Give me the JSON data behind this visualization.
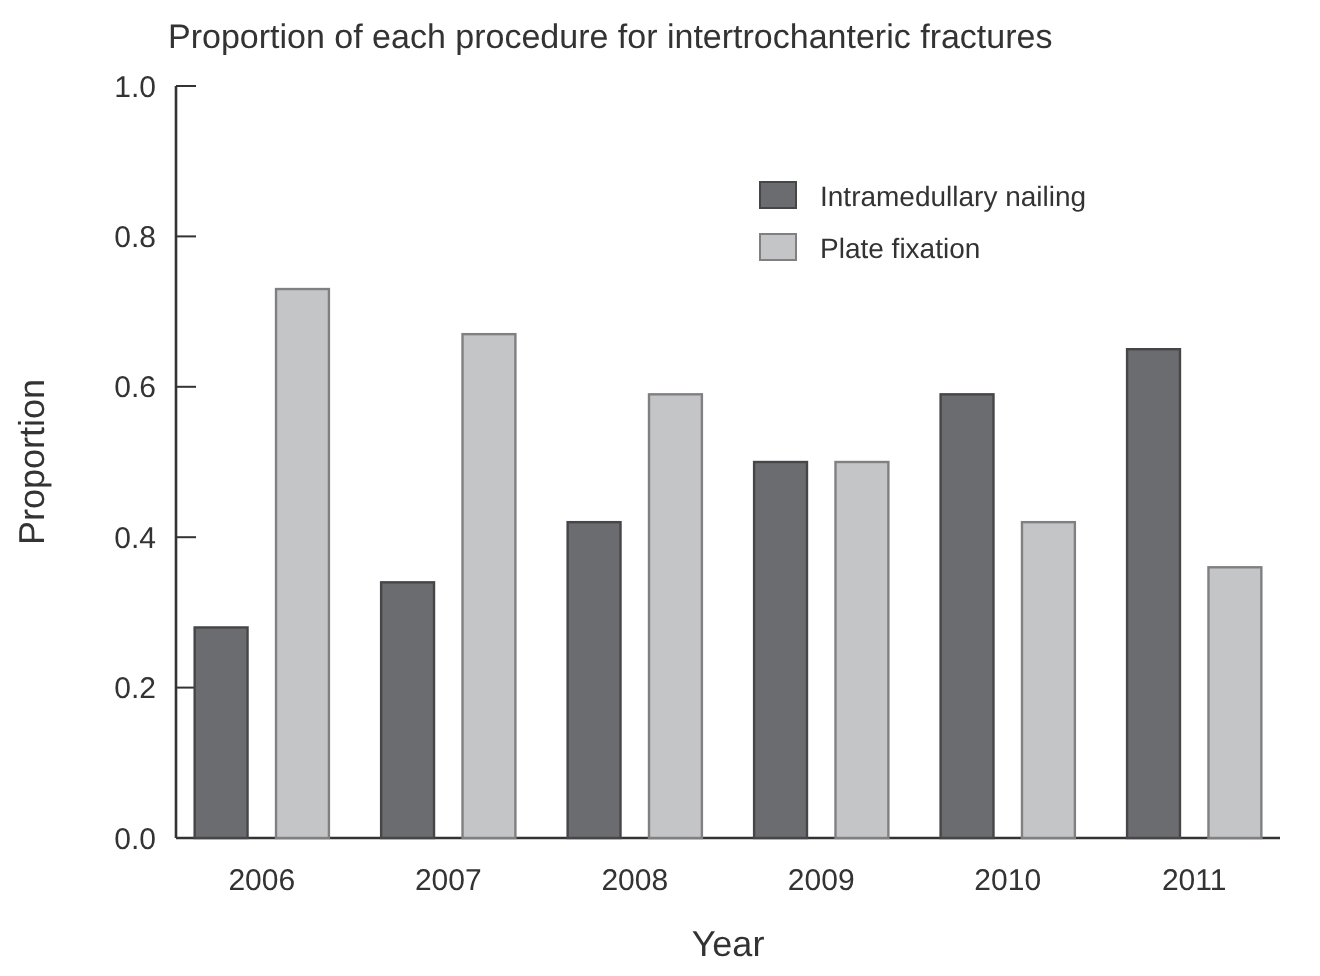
{
  "chart_data": {
    "type": "bar",
    "title": "Proportion of each procedure for intertrochanteric fractures",
    "xlabel": "Year",
    "ylabel": "Proportion",
    "categories": [
      "2006",
      "2007",
      "2008",
      "2009",
      "2010",
      "2011"
    ],
    "series": [
      {
        "name": "Intramedullary nailing",
        "color": "#6b6c70",
        "values": [
          0.28,
          0.34,
          0.42,
          0.5,
          0.59,
          0.65
        ]
      },
      {
        "name": "Plate fixation",
        "color": "#c4c5c7",
        "values": [
          0.73,
          0.67,
          0.59,
          0.5,
          0.42,
          0.36
        ]
      }
    ],
    "ylim": [
      0,
      1
    ],
    "yticks": [
      {
        "value": 0,
        "label": "0.0"
      },
      {
        "value": 0.2,
        "label": "0.2"
      },
      {
        "value": 0.4,
        "label": "0.4"
      },
      {
        "value": 0.6,
        "label": "0.6"
      },
      {
        "value": 0.8,
        "label": "0.8"
      },
      {
        "value": 1,
        "label": "1.0"
      }
    ],
    "grid": false,
    "legend": "top right"
  }
}
